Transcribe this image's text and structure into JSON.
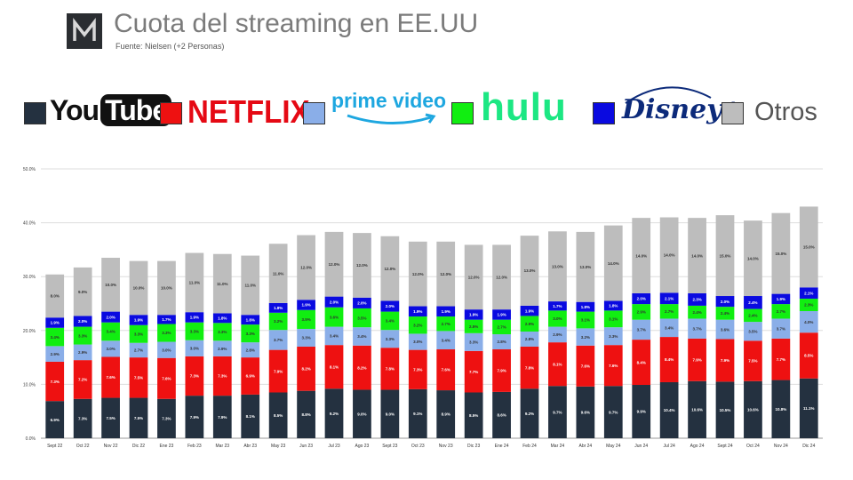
{
  "header": {
    "title": "Cuota del streaming en EE.UU",
    "subtitle": "Fuente: Nielsen (+2 Personas)",
    "logo_letter": "M"
  },
  "legend": [
    {
      "label": "YouTube",
      "color": "#243140"
    },
    {
      "label": "NETFLIX",
      "color": "#ee1111"
    },
    {
      "label": "prime video",
      "color": "#8aaee8"
    },
    {
      "label": "hulu",
      "color": "#11ee11"
    },
    {
      "label": "Disney+",
      "color": "#0a0ae0"
    },
    {
      "label": "Otros",
      "color": "#bdbdbd"
    }
  ],
  "chart_data": {
    "type": "bar",
    "stacked": true,
    "title": "",
    "xlabel": "",
    "ylabel": "",
    "ylim": [
      0,
      50
    ],
    "yticks": [
      "0.0%",
      "10.0%",
      "20.0%",
      "30.0%",
      "40.0%",
      "50.0%"
    ],
    "grid": true,
    "categories": [
      "Sept 22",
      "Oct 22",
      "Nov 22",
      "Dic 22",
      "Ene 23",
      "Feb 23",
      "Mar 23",
      "Abr 23",
      "May 23",
      "Jun 23",
      "Jul 23",
      "Ago 23",
      "Sept 23",
      "Oct 23",
      "Nov 23",
      "Dic 23",
      "Ene 24",
      "Feb 24",
      "Mar 24",
      "Abr 24",
      "May 24",
      "Jun 24",
      "Jul 24",
      "Ago 24",
      "Sept 24",
      "Oct 24",
      "Nov 24",
      "Dic 24"
    ],
    "series": [
      {
        "name": "YouTube",
        "color": "#243140",
        "values": [
          6.9,
          7.3,
          7.5,
          7.5,
          7.3,
          7.9,
          7.9,
          8.1,
          8.5,
          8.8,
          9.2,
          9.0,
          9.0,
          9.1,
          8.9,
          8.5,
          8.6,
          9.2,
          9.7,
          9.6,
          9.7,
          9.9,
          10.4,
          10.6,
          10.5,
          10.6,
          10.8,
          11.1
        ],
        "labels": [
          "6.9%",
          "7.3%",
          "7.5%",
          "7.5%",
          "7.3%",
          "7.9%",
          "7.9%",
          "8.1%",
          "8.5%",
          "8.8%",
          "9.2%",
          "9.0%",
          "9.0%",
          "9.1%",
          "8.9%",
          "8.5%",
          "8.6%",
          "9.2%",
          "9.7%",
          "9.6%",
          "9.7%",
          "9.9%",
          "10.4%",
          "10.6%",
          "10.5%",
          "10.6%",
          "10.8%",
          "11.1%"
        ]
      },
      {
        "name": "NETFLIX",
        "color": "#ee1111",
        "values": [
          7.3,
          7.2,
          7.6,
          7.5,
          7.6,
          7.3,
          7.3,
          6.9,
          7.9,
          8.2,
          8.1,
          8.2,
          7.8,
          7.3,
          7.6,
          7.7,
          7.9,
          7.8,
          8.1,
          7.6,
          7.6,
          8.4,
          8.4,
          7.9,
          7.9,
          7.5,
          7.7,
          8.5
        ],
        "labels": [
          "7.3%",
          "7.2%",
          "7.6%",
          "7.5%",
          "7.6%",
          "7.3%",
          "7.3%",
          "6.9%",
          "7.9%",
          "8.2%",
          "8.1%",
          "8.2%",
          "7.8%",
          "7.3%",
          "7.6%",
          "7.7%",
          "7.9%",
          "7.8%",
          "8.1%",
          "7.6%",
          "7.6%",
          "8.4%",
          "8.4%",
          "7.9%",
          "7.9%",
          "7.5%",
          "7.7%",
          "8.5%"
        ]
      },
      {
        "name": "prime video",
        "color": "#8aaee8",
        "values": [
          2.9,
          2.9,
          3.0,
          2.7,
          3.0,
          3.0,
          2.9,
          2.8,
          3.7,
          3.3,
          3.4,
          3.4,
          3.3,
          3.0,
          3.4,
          3.3,
          2.8,
          2.8,
          2.9,
          3.2,
          3.3,
          3.7,
          3.4,
          3.7,
          3.6,
          3.5,
          3.7,
          4.0
        ],
        "labels": [
          "2.9%",
          "2.9%",
          "3.0%",
          "2.7%",
          "3.0%",
          "3.0%",
          "2.9%",
          "2.8%",
          "3.7%",
          "3.3%",
          "3.4%",
          "3.4%",
          "3.3%",
          "3.0%",
          "3.4%",
          "3.3%",
          "2.8%",
          "2.8%",
          "2.9%",
          "3.2%",
          "3.3%",
          "3.7%",
          "3.4%",
          "3.7%",
          "3.6%",
          "3.5%",
          "3.7%",
          "4.0%"
        ]
      },
      {
        "name": "hulu",
        "color": "#11ee11",
        "values": [
          3.4,
          3.3,
          3.4,
          3.3,
          3.3,
          3.3,
          3.3,
          3.3,
          3.2,
          3.5,
          3.6,
          3.5,
          3.4,
          3.2,
          2.7,
          2.5,
          2.7,
          2.9,
          3.0,
          3.1,
          3.1,
          2.9,
          2.7,
          2.4,
          2.4,
          2.4,
          2.7,
          2.3
        ],
        "labels": [
          "3.4%",
          "3.3%",
          "3.4%",
          "3.3%",
          "3.3%",
          "3.3%",
          "3.3%",
          "3.3%",
          "3.2%",
          "3.5%",
          "3.6%",
          "3.5%",
          "3.4%",
          "3.2%",
          "2.7%",
          "2.5%",
          "2.7%",
          "2.9%",
          "3.0%",
          "3.1%",
          "3.1%",
          "2.9%",
          "2.7%",
          "2.4%",
          "2.4%",
          "2.4%",
          "2.7%",
          "2.3%"
        ]
      },
      {
        "name": "Disney+",
        "color": "#0a0ae0",
        "values": [
          1.9,
          2.0,
          2.0,
          1.9,
          1.7,
          1.9,
          1.8,
          1.8,
          1.8,
          1.9,
          2.0,
          2.0,
          2.0,
          1.9,
          1.9,
          1.9,
          1.9,
          1.9,
          1.7,
          1.8,
          1.8,
          2.0,
          2.1,
          2.3,
          2.0,
          2.4,
          1.9,
          2.1
        ],
        "labels": [
          "1.9%",
          "2.0%",
          "2.0%",
          "1.9%",
          "1.7%",
          "1.9%",
          "1.8%",
          "1.8%",
          "1.8%",
          "1.9%",
          "2.0%",
          "2.0%",
          "2.0%",
          "1.9%",
          "1.9%",
          "1.9%",
          "1.9%",
          "1.9%",
          "1.7%",
          "1.8%",
          "1.8%",
          "2.0%",
          "2.1%",
          "2.3%",
          "2.0%",
          "2.4%",
          "1.9%",
          "2.1%"
        ]
      },
      {
        "name": "Otros",
        "color": "#bdbdbd",
        "values": [
          8.0,
          9.0,
          10.0,
          10.0,
          10.0,
          11.0,
          11.0,
          11.0,
          11.0,
          12.0,
          12.0,
          12.0,
          12.0,
          12.0,
          12.0,
          12.0,
          12.0,
          13.0,
          13.0,
          13.0,
          14.0,
          14.0,
          14.0,
          14.0,
          15.0,
          14.0,
          15.0,
          15.0
        ],
        "labels": [
          "8.0%",
          "9.0%",
          "10.0%",
          "10.0%",
          "10.0%",
          "11.0%",
          "11.0%",
          "11.0%",
          "11.0%",
          "12.0%",
          "12.0%",
          "12.0%",
          "12.0%",
          "12.0%",
          "12.0%",
          "12.0%",
          "12.0%",
          "13.0%",
          "13.0%",
          "13.0%",
          "14.0%",
          "14.0%",
          "14.0%",
          "14.0%",
          "15.0%",
          "14.0%",
          "15.0%",
          "15.0%"
        ]
      }
    ]
  }
}
